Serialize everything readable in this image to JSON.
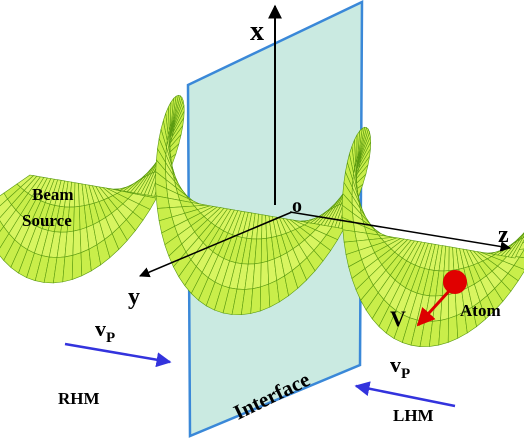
{
  "labels": {
    "x_axis": "x",
    "beam_source": [
      "Beam",
      "Source"
    ],
    "origin": "o",
    "z_axis": "z",
    "y_axis": "y",
    "atom": "Atom",
    "velocity": "V",
    "vp_left": {
      "main": "v",
      "sub": "P"
    },
    "vp_right": {
      "main": "v",
      "sub": "P"
    },
    "rhm": "RHM",
    "lhm": "LHM",
    "interface": "Interface"
  }
}
